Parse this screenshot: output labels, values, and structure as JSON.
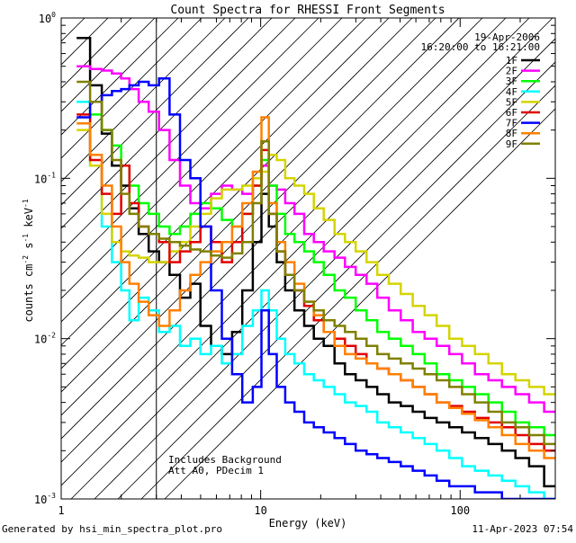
{
  "chart_data": {
    "type": "line",
    "title": "Count Spectra for RHESSI Front Segments",
    "xlabel": "Energy (keV)",
    "ylabel": "counts cm^-2 s^-1 keV^-1",
    "x_scale": "log",
    "y_scale": "log",
    "xlim": [
      1.0,
      300.0
    ],
    "ylim": [
      0.001,
      1.0
    ],
    "x_tick_labels": [
      "1",
      "10",
      "100"
    ],
    "y_tick_labels": [
      "10^-3",
      "10^-2",
      "10^-1",
      "10^0"
    ],
    "grid": false,
    "legend_position": "top-right",
    "date": "19-Apr-2006",
    "time_range": "16:20:00 to 16:21:00",
    "annotation_lines": [
      "Includes Background",
      "Att A0, PDecim 1"
    ],
    "hatched_region": [
      1.0,
      3.0
    ],
    "series": [
      {
        "name": "1F",
        "color": "#000000",
        "x": [
          1.3,
          1.5,
          1.7,
          1.9,
          2.1,
          2.3,
          2.6,
          2.9,
          3.3,
          3.7,
          4.2,
          4.7,
          5.3,
          6,
          6.8,
          7.6,
          8.6,
          9.7,
          10.5,
          11.5,
          12.6,
          14,
          15.6,
          17.5,
          19.5,
          22,
          25,
          28,
          32,
          36,
          41,
          47,
          54,
          62,
          71,
          82,
          95,
          110,
          128,
          150,
          175,
          205,
          240,
          290
        ],
        "y": [
          0.75,
          0.38,
          0.19,
          0.12,
          0.09,
          0.065,
          0.045,
          0.035,
          0.03,
          0.025,
          0.018,
          0.022,
          0.012,
          0.009,
          0.008,
          0.011,
          0.02,
          0.04,
          0.08,
          0.05,
          0.03,
          0.02,
          0.015,
          0.012,
          0.01,
          0.009,
          0.007,
          0.006,
          0.0055,
          0.005,
          0.0045,
          0.004,
          0.0038,
          0.0035,
          0.0032,
          0.003,
          0.0028,
          0.0026,
          0.0024,
          0.0022,
          0.002,
          0.0018,
          0.0016,
          0.0012
        ]
      },
      {
        "name": "2F",
        "color": "#ff00ff",
        "x": [
          1.3,
          1.5,
          1.7,
          1.9,
          2.1,
          2.3,
          2.6,
          2.9,
          3.3,
          3.7,
          4.2,
          4.7,
          5.3,
          6,
          6.8,
          7.6,
          8.6,
          9.7,
          10.5,
          11.5,
          12.6,
          14,
          15.6,
          17.5,
          19.5,
          22,
          25,
          28,
          32,
          36,
          41,
          47,
          54,
          62,
          71,
          82,
          95,
          110,
          128,
          150,
          175,
          205,
          240,
          290
        ],
        "y": [
          0.5,
          0.48,
          0.47,
          0.45,
          0.42,
          0.36,
          0.3,
          0.26,
          0.2,
          0.13,
          0.09,
          0.07,
          0.065,
          0.08,
          0.09,
          0.085,
          0.08,
          0.1,
          0.12,
          0.09,
          0.085,
          0.07,
          0.06,
          0.045,
          0.04,
          0.035,
          0.032,
          0.028,
          0.025,
          0.022,
          0.018,
          0.015,
          0.013,
          0.011,
          0.01,
          0.009,
          0.008,
          0.007,
          0.006,
          0.0055,
          0.005,
          0.0045,
          0.004,
          0.0035
        ]
      },
      {
        "name": "3F",
        "color": "#00ff00",
        "x": [
          1.3,
          1.5,
          1.7,
          1.9,
          2.1,
          2.3,
          2.6,
          2.9,
          3.3,
          3.7,
          4.2,
          4.7,
          5.3,
          6,
          6.8,
          7.6,
          8.6,
          9.7,
          10.5,
          11.5,
          12.6,
          14,
          15.6,
          17.5,
          19.5,
          22,
          25,
          28,
          32,
          36,
          41,
          47,
          54,
          62,
          71,
          82,
          95,
          110,
          128,
          150,
          175,
          205,
          240,
          290
        ],
        "y": [
          0.3,
          0.25,
          0.2,
          0.16,
          0.12,
          0.09,
          0.07,
          0.06,
          0.05,
          0.045,
          0.05,
          0.06,
          0.07,
          0.065,
          0.055,
          0.05,
          0.06,
          0.09,
          0.13,
          0.09,
          0.06,
          0.045,
          0.04,
          0.035,
          0.03,
          0.025,
          0.02,
          0.018,
          0.015,
          0.013,
          0.011,
          0.01,
          0.009,
          0.008,
          0.007,
          0.006,
          0.0055,
          0.005,
          0.0045,
          0.004,
          0.0035,
          0.003,
          0.0028,
          0.0025
        ]
      },
      {
        "name": "4F",
        "color": "#00ffff",
        "x": [
          1.3,
          1.5,
          1.7,
          1.9,
          2.1,
          2.3,
          2.6,
          2.9,
          3.3,
          3.7,
          4.2,
          4.7,
          5.3,
          6,
          6.8,
          7.6,
          8.6,
          9.7,
          10.5,
          11.5,
          12.6,
          14,
          15.6,
          17.5,
          19.5,
          22,
          25,
          28,
          32,
          36,
          41,
          47,
          54,
          62,
          71,
          82,
          95,
          110,
          128,
          150,
          175,
          205,
          240,
          290
        ],
        "y": [
          0.3,
          0.12,
          0.05,
          0.03,
          0.02,
          0.013,
          0.018,
          0.015,
          0.011,
          0.012,
          0.009,
          0.01,
          0.008,
          0.009,
          0.007,
          0.008,
          0.012,
          0.015,
          0.02,
          0.015,
          0.01,
          0.008,
          0.007,
          0.006,
          0.0055,
          0.005,
          0.0045,
          0.004,
          0.0038,
          0.0035,
          0.003,
          0.0028,
          0.0026,
          0.0024,
          0.0022,
          0.002,
          0.0018,
          0.0016,
          0.0015,
          0.0014,
          0.0013,
          0.0012,
          0.0011,
          0.001
        ]
      },
      {
        "name": "5F",
        "color": "#d4d400",
        "x": [
          1.3,
          1.5,
          1.7,
          1.9,
          2.1,
          2.3,
          2.6,
          2.9,
          3.3,
          3.7,
          4.2,
          4.7,
          5.3,
          6,
          6.8,
          7.6,
          8.6,
          9.7,
          10.5,
          11.5,
          12.6,
          14,
          15.6,
          17.5,
          19.5,
          22,
          25,
          28,
          32,
          36,
          41,
          47,
          54,
          62,
          71,
          82,
          95,
          110,
          128,
          150,
          175,
          205,
          240,
          290
        ],
        "y": [
          0.2,
          0.12,
          0.06,
          0.04,
          0.035,
          0.033,
          0.032,
          0.03,
          0.03,
          0.035,
          0.04,
          0.05,
          0.06,
          0.075,
          0.085,
          0.085,
          0.09,
          0.1,
          0.11,
          0.14,
          0.13,
          0.1,
          0.09,
          0.08,
          0.065,
          0.055,
          0.045,
          0.04,
          0.035,
          0.03,
          0.025,
          0.022,
          0.019,
          0.016,
          0.014,
          0.012,
          0.01,
          0.009,
          0.008,
          0.007,
          0.006,
          0.0055,
          0.005,
          0.0045
        ]
      },
      {
        "name": "6F",
        "color": "#e00000",
        "x": [
          1.3,
          1.5,
          1.7,
          1.9,
          2.1,
          2.3,
          2.6,
          2.9,
          3.3,
          3.7,
          4.2,
          4.7,
          5.3,
          6,
          6.8,
          7.6,
          8.6,
          9.7,
          10.5,
          11.5,
          12.6,
          14,
          15.6,
          17.5,
          19.5,
          22,
          25,
          28,
          32,
          36,
          41,
          47,
          54,
          62,
          71,
          82,
          95,
          110,
          128,
          150,
          175,
          205,
          240,
          290
        ],
        "y": [
          0.25,
          0.13,
          0.08,
          0.06,
          0.12,
          0.07,
          0.05,
          0.045,
          0.04,
          0.03,
          0.035,
          0.04,
          0.05,
          0.04,
          0.03,
          0.04,
          0.06,
          0.09,
          0.15,
          0.06,
          0.035,
          0.025,
          0.02,
          0.016,
          0.013,
          0.011,
          0.01,
          0.009,
          0.008,
          0.007,
          0.0065,
          0.006,
          0.0055,
          0.005,
          0.0045,
          0.004,
          0.0038,
          0.0035,
          0.0032,
          0.003,
          0.0028,
          0.0025,
          0.0022,
          0.002
        ]
      },
      {
        "name": "7F",
        "color": "#0000ff",
        "x": [
          1.3,
          1.5,
          1.7,
          1.9,
          2.1,
          2.3,
          2.6,
          2.9,
          3.3,
          3.7,
          4.2,
          4.7,
          5.3,
          6,
          6.8,
          7.6,
          8.6,
          9.7,
          10.5,
          11.5,
          12.6,
          14,
          15.6,
          17.5,
          19.5,
          22,
          25,
          28,
          32,
          36,
          41,
          47,
          54,
          62,
          71,
          82,
          95,
          110,
          128,
          150,
          175,
          205,
          240,
          290
        ],
        "y": [
          0.24,
          0.3,
          0.33,
          0.35,
          0.36,
          0.38,
          0.4,
          0.38,
          0.42,
          0.25,
          0.13,
          0.1,
          0.05,
          0.02,
          0.01,
          0.006,
          0.004,
          0.005,
          0.015,
          0.008,
          0.005,
          0.004,
          0.0035,
          0.003,
          0.0028,
          0.0026,
          0.0024,
          0.0022,
          0.002,
          0.0019,
          0.0018,
          0.0017,
          0.0016,
          0.0015,
          0.0014,
          0.0013,
          0.0012,
          0.0012,
          0.0011,
          0.0011,
          0.001,
          0.001,
          0.001,
          0.001
        ]
      },
      {
        "name": "8F",
        "color": "#ff8000",
        "x": [
          1.3,
          1.5,
          1.7,
          1.9,
          2.1,
          2.3,
          2.6,
          2.9,
          3.3,
          3.7,
          4.2,
          4.7,
          5.3,
          6,
          6.8,
          7.6,
          8.6,
          9.7,
          10.5,
          11.5,
          12.6,
          14,
          15.6,
          17.5,
          19.5,
          22,
          25,
          28,
          32,
          36,
          41,
          47,
          54,
          62,
          71,
          82,
          95,
          110,
          128,
          150,
          175,
          205,
          240,
          290
        ],
        "y": [
          0.22,
          0.14,
          0.09,
          0.05,
          0.03,
          0.022,
          0.017,
          0.014,
          0.012,
          0.015,
          0.02,
          0.025,
          0.03,
          0.035,
          0.04,
          0.05,
          0.07,
          0.11,
          0.24,
          0.07,
          0.04,
          0.03,
          0.022,
          0.017,
          0.014,
          0.011,
          0.009,
          0.008,
          0.0075,
          0.007,
          0.0065,
          0.006,
          0.0055,
          0.005,
          0.0045,
          0.004,
          0.0037,
          0.0034,
          0.0031,
          0.0028,
          0.0025,
          0.0022,
          0.002,
          0.0018
        ]
      },
      {
        "name": "9F",
        "color": "#808000",
        "x": [
          1.3,
          1.5,
          1.7,
          1.9,
          2.1,
          2.3,
          2.6,
          2.9,
          3.3,
          3.7,
          4.2,
          4.7,
          5.3,
          6,
          6.8,
          7.6,
          8.6,
          9.7,
          10.5,
          11.5,
          12.6,
          14,
          15.6,
          17.5,
          19.5,
          22,
          25,
          28,
          32,
          36,
          41,
          47,
          54,
          62,
          71,
          82,
          95,
          110,
          128,
          150,
          175,
          205,
          240,
          290
        ],
        "y": [
          0.4,
          0.3,
          0.2,
          0.13,
          0.08,
          0.06,
          0.05,
          0.045,
          0.042,
          0.04,
          0.038,
          0.036,
          0.035,
          0.033,
          0.032,
          0.034,
          0.04,
          0.07,
          0.17,
          0.06,
          0.035,
          0.025,
          0.02,
          0.017,
          0.015,
          0.013,
          0.012,
          0.011,
          0.01,
          0.009,
          0.008,
          0.0075,
          0.007,
          0.0065,
          0.006,
          0.0055,
          0.005,
          0.0045,
          0.004,
          0.0035,
          0.003,
          0.0028,
          0.0025,
          0.0022
        ]
      }
    ]
  },
  "footer": {
    "generated_by": "Generated by hsi_min_spectra_plot.pro",
    "timestamp": "11-Apr-2023 07:54"
  }
}
